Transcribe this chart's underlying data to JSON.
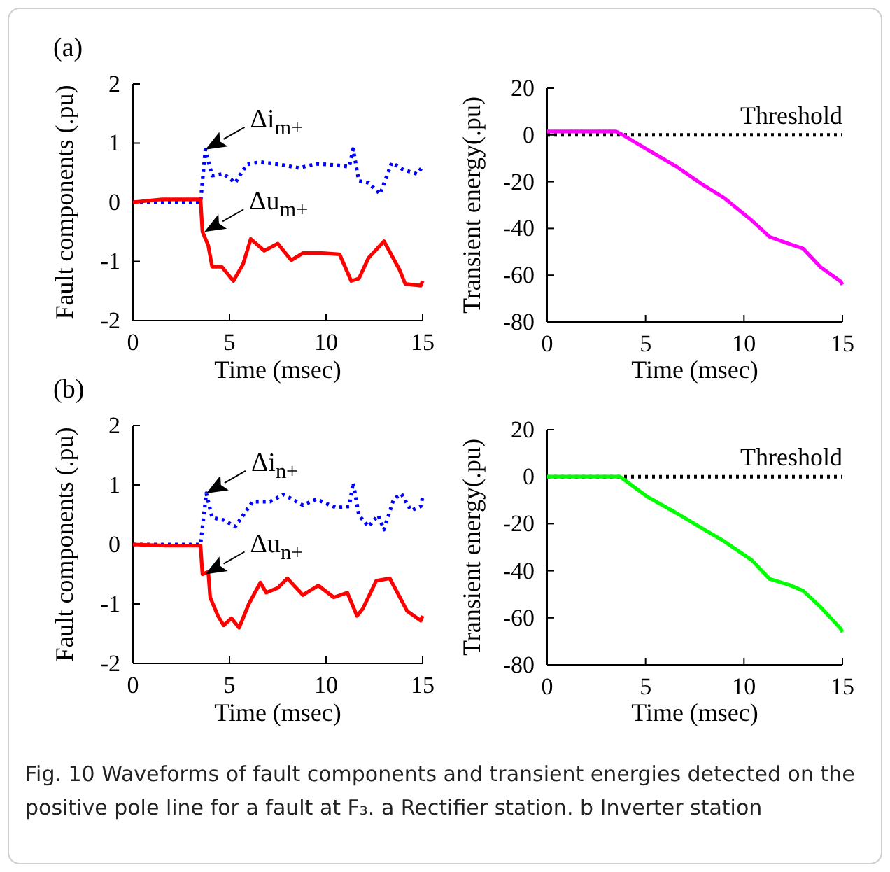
{
  "chart_data": [
    {
      "type": "line",
      "title": "(a)",
      "xlabel": "Time (msec)",
      "ylabel": "Fault components (.pu)",
      "xlim": [
        0,
        15
      ],
      "xticks": [
        0,
        5,
        10,
        15
      ],
      "ylim": [
        -2,
        2
      ],
      "yticks": [
        -2,
        -1,
        0,
        1,
        2
      ],
      "series": [
        {
          "color": "#0000ff",
          "line_style": "dotted",
          "x": [
            0,
            3.5,
            3.75,
            4.1,
            4.7,
            5.3,
            5.9,
            6.6,
            7.6,
            8.6,
            9.5,
            10.5,
            11.2,
            11.4,
            11.7,
            12.2,
            12.8,
            13.4,
            14.0,
            14.7,
            15
          ],
          "values": [
            0,
            0,
            0.89,
            0.45,
            0.48,
            0.33,
            0.64,
            0.68,
            0.64,
            0.58,
            0.65,
            0.63,
            0.6,
            0.9,
            0.36,
            0.33,
            0.14,
            0.67,
            0.55,
            0.48,
            0.6
          ]
        },
        {
          "color": "#ff0000",
          "line_style": "solid",
          "x": [
            0,
            1.5,
            3.5,
            3.6,
            3.9,
            4.1,
            4.6,
            5.2,
            5.7,
            6.1,
            6.8,
            7.5,
            8.2,
            8.8,
            9.8,
            10.7,
            11.3,
            11.7,
            12.2,
            13.0,
            13.8,
            14.1,
            14.9,
            15
          ],
          "values": [
            0,
            0.05,
            0.05,
            -0.5,
            -0.73,
            -1.09,
            -1.09,
            -1.33,
            -1.05,
            -0.62,
            -0.82,
            -0.7,
            -0.98,
            -0.86,
            -0.86,
            -0.88,
            -1.33,
            -1.29,
            -0.94,
            -0.66,
            -1.14,
            -1.38,
            -1.41,
            -1.33
          ]
        }
      ],
      "annotations": [
        {
          "text": "Δi$_{m+}$",
          "x": 3.75,
          "y": 0.89
        },
        {
          "text": "Δu$_{m+}$",
          "x": 3.7,
          "y": -0.5
        }
      ]
    },
    {
      "type": "line",
      "xlabel": "Time (msec)",
      "ylabel": "Transient energy(.pu)",
      "xlim": [
        0,
        15
      ],
      "xticks": [
        0,
        5,
        10,
        15
      ],
      "ylim": [
        -80,
        20
      ],
      "yticks": [
        -80,
        -60,
        -40,
        -20,
        0,
        20
      ],
      "series": [
        {
          "color": "#ff00ff",
          "line_style": "solid",
          "x": [
            0,
            3.5,
            3.8,
            5.0,
            6.6,
            7.8,
            9.0,
            10.4,
            11.3,
            12.3,
            13.0,
            13.9,
            14.9,
            15
          ],
          "values": [
            1.5,
            1.5,
            0.2,
            -5.8,
            -13.7,
            -20.7,
            -27,
            -36.6,
            -43.6,
            -46.6,
            -48.6,
            -56.6,
            -62.6,
            -64
          ]
        }
      ],
      "ref_lines": [
        {
          "axis": "y",
          "value": 0,
          "label": "Threshold",
          "color": "#000000",
          "line_style": "dotted"
        }
      ]
    },
    {
      "type": "line",
      "title": "(b)",
      "xlabel": "Time (msec)",
      "ylabel": "Fault components (.pu)",
      "xlim": [
        0,
        15
      ],
      "xticks": [
        0,
        5,
        10,
        15
      ],
      "ylim": [
        -2,
        2
      ],
      "yticks": [
        -2,
        -1,
        0,
        1,
        2
      ],
      "series": [
        {
          "color": "#0000ff",
          "line_style": "dotted",
          "x": [
            0,
            3.5,
            3.8,
            4.1,
            4.7,
            5.3,
            6.2,
            7.1,
            7.8,
            8.8,
            9.5,
            10.5,
            11.2,
            11.4,
            11.7,
            12.2,
            12.7,
            13.0,
            13.5,
            13.9,
            14.4,
            14.9,
            15
          ],
          "values": [
            0,
            0,
            0.86,
            0.45,
            0.41,
            0.3,
            0.72,
            0.72,
            0.84,
            0.66,
            0.76,
            0.62,
            0.64,
            1.04,
            0.49,
            0.3,
            0.49,
            0.25,
            0.76,
            0.85,
            0.57,
            0.64,
            0.8
          ]
        },
        {
          "color": "#ff0000",
          "line_style": "solid",
          "x": [
            0,
            1.7,
            3.5,
            3.6,
            3.9,
            4.0,
            4.4,
            4.7,
            5.1,
            5.5,
            6.0,
            6.6,
            6.9,
            7.5,
            8.0,
            8.8,
            9.6,
            10.4,
            11.1,
            11.6,
            11.9,
            12.6,
            13.3,
            14.2,
            14.9,
            15
          ],
          "values": [
            0,
            -0.02,
            -0.02,
            -0.5,
            -0.46,
            -0.89,
            -1.2,
            -1.36,
            -1.24,
            -1.4,
            -1.0,
            -0.64,
            -0.81,
            -0.73,
            -0.57,
            -0.85,
            -0.69,
            -0.89,
            -0.81,
            -1.2,
            -1.08,
            -0.61,
            -0.57,
            -1.12,
            -1.28,
            -1.2
          ]
        }
      ],
      "annotations": [
        {
          "text": "Δi$_{n+}$",
          "x": 3.8,
          "y": 0.86
        },
        {
          "text": "Δu$_{n+}$",
          "x": 3.75,
          "y": -0.5
        }
      ]
    },
    {
      "type": "line",
      "xlabel": "Time (msec)",
      "ylabel": "Transient energy(.pu)",
      "xlim": [
        0,
        15
      ],
      "xticks": [
        0,
        5,
        10,
        15
      ],
      "ylim": [
        -80,
        20
      ],
      "yticks": [
        -80,
        -60,
        -40,
        -20,
        0,
        20
      ],
      "series": [
        {
          "color": "#00ff00",
          "line_style": "solid",
          "x": [
            0,
            3.7,
            5.1,
            6.6,
            7.8,
            9.0,
            10.4,
            11.3,
            12.3,
            13.0,
            13.9,
            14.9,
            15
          ],
          "values": [
            0,
            0,
            -8.6,
            -15.6,
            -21.6,
            -27.5,
            -35.5,
            -43.5,
            -46,
            -48.5,
            -55.5,
            -64.5,
            -66
          ]
        }
      ],
      "ref_lines": [
        {
          "axis": "y",
          "value": 0,
          "label": "Threshold",
          "color": "#000000",
          "line_style": "dotted"
        }
      ],
      "annotations": [
        "Fig. 10 Waveforms of fault components and transient energies detected on the positive pole line for a fault at F₃. a Rectifier station. b Inverter station"
      ]
    }
  ]
}
